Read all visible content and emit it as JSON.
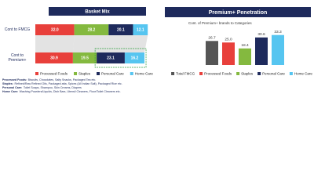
{
  "chart_data": [
    {
      "type": "bar",
      "orientation": "horizontal",
      "stacked": true,
      "title": "Basket Mix",
      "categories": [
        "Cont to FMCG",
        "Cont to Premium+"
      ],
      "series": [
        {
          "name": "Processed Foods",
          "color": "#e8403b",
          "values": [
            32.0,
            30.9
          ],
          "value_labels": [
            "32.0",
            "30.9"
          ]
        },
        {
          "name": "Staples",
          "color": "#84b93f",
          "values": [
            28.2,
            19.5
          ],
          "value_labels": [
            "28.2",
            "19.5"
          ]
        },
        {
          "name": "Personal Care",
          "color": "#1e2a5c",
          "values": [
            20.1,
            23.1
          ],
          "value_labels": [
            "20.1",
            "23.1"
          ]
        },
        {
          "name": "Home Care",
          "color": "#56c5f0",
          "values": [
            12.1,
            16.2
          ],
          "value_labels": [
            "12.1",
            "16.2"
          ]
        }
      ]
    },
    {
      "type": "bar",
      "title": "Premium+ Penetration",
      "subtitle": "Cont. of Premium+ brands to Categories",
      "categories": [
        "Total FMCG",
        "Processed Foods",
        "Staples",
        "Personal Care",
        "Home Care"
      ],
      "values": [
        26.7,
        25.0,
        18.4,
        30.6,
        33.3
      ],
      "value_labels": [
        "26.7",
        "25.0",
        "18.4",
        "30.6",
        "33.3"
      ],
      "colors": [
        "#555555",
        "#e8403b",
        "#84b93f",
        "#1e2a5c",
        "#56c5f0"
      ]
    }
  ],
  "footnotes": [
    {
      "term": "Processed Foods:",
      "text": "Biscuits, Chocolates, Salty Snacks, Packaged Tea etc."
    },
    {
      "term": "Staples:",
      "text": "Refined/Raw Refined Oils, Packaged atta, Spices (All Indian Salt), Packaged Rice etc."
    },
    {
      "term": "Personal Care:",
      "text": "Toilet Soaps, Shampoo, Skin Creams, Diapers"
    },
    {
      "term": "Home Care:",
      "text": "Washing Powders/Liquids, Dish Bars, Utensil Cleaners, Floor/Toilet Cleaners etc."
    }
  ]
}
